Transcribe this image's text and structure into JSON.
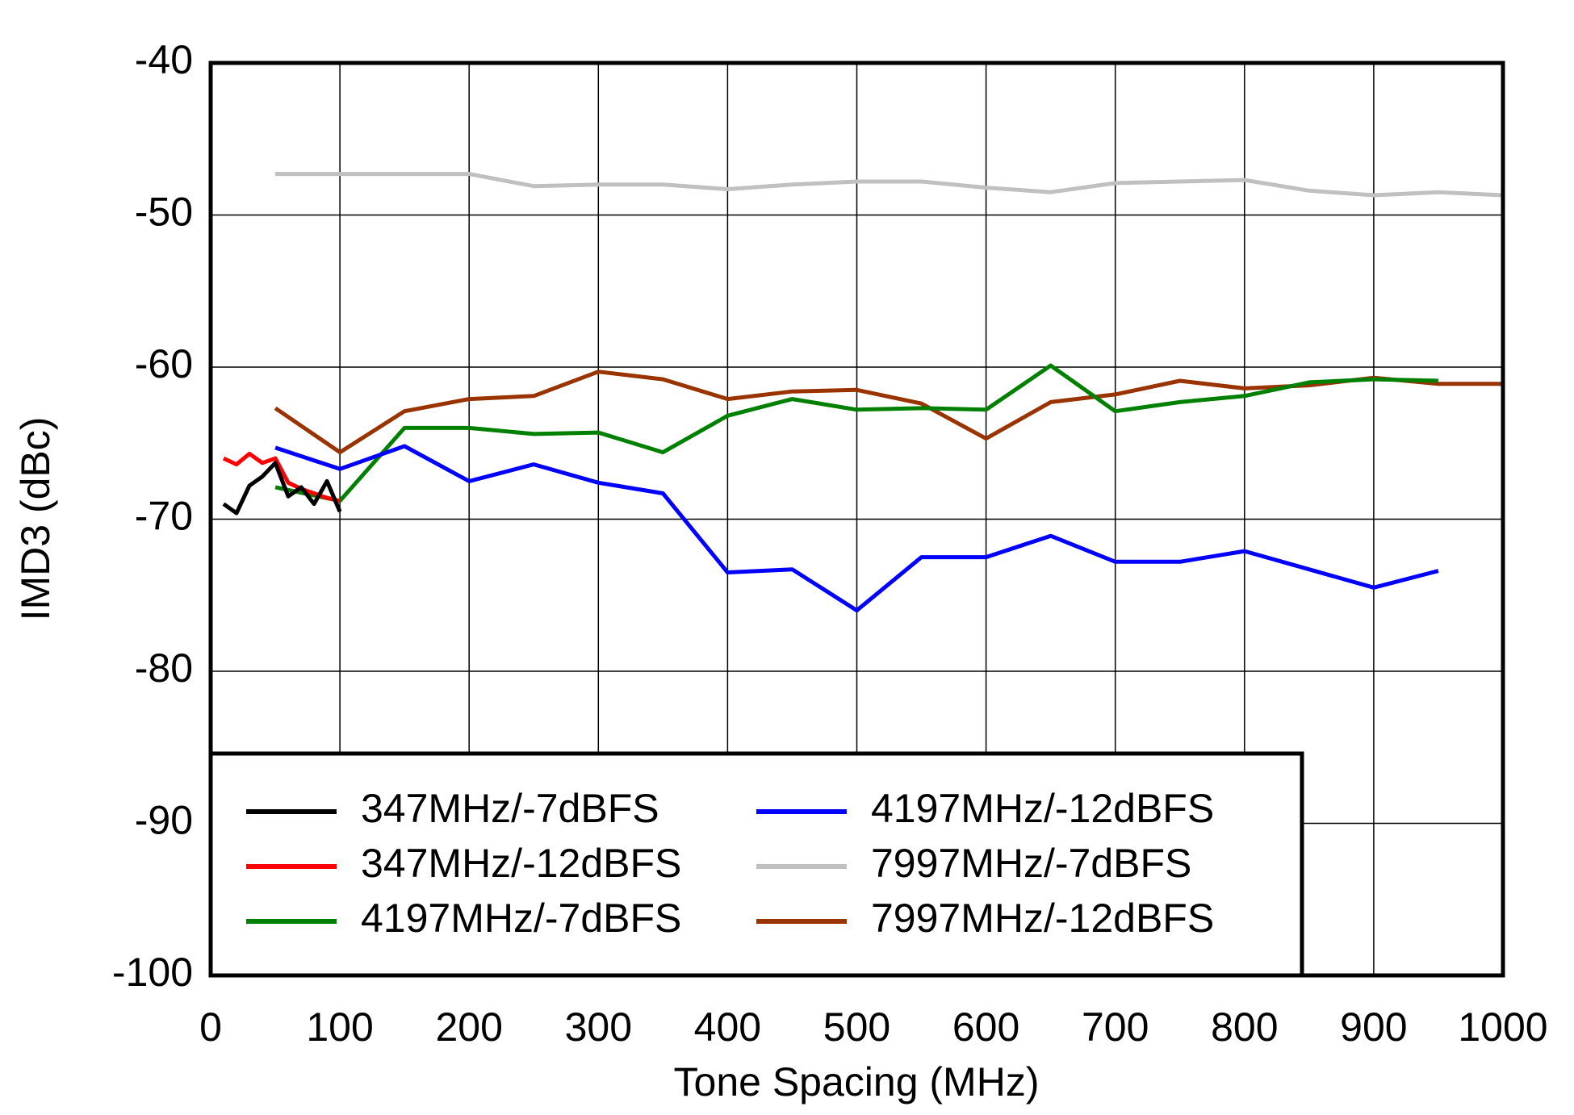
{
  "chart_data": {
    "type": "line",
    "xlabel": "Tone Spacing  (MHz)",
    "ylabel": "IMD3 (dBc)",
    "xlim": [
      0,
      1000
    ],
    "xticks": [
      0,
      100,
      200,
      300,
      400,
      500,
      600,
      700,
      800,
      900,
      1000
    ],
    "ylim": [
      -100,
      -40
    ],
    "yticks": [
      -100,
      -90,
      -80,
      -70,
      -60,
      -50,
      -40
    ],
    "grid": true,
    "legend": "lower left",
    "series": [
      {
        "name": "347MHz/-7dBFS",
        "color": "#000000",
        "x": [
          10,
          20,
          30,
          40,
          50,
          60,
          70,
          80,
          90,
          100
        ],
        "values": [
          -69,
          -69.6,
          -67.8,
          -67.2,
          -66.3,
          -68.5,
          -67.9,
          -69,
          -67.5,
          -69.5
        ]
      },
      {
        "name": "347MHz/-12dBFS",
        "color": "#ff0000",
        "x": [
          10,
          20,
          30,
          40,
          50,
          60,
          70,
          80,
          90,
          100
        ],
        "values": [
          -66,
          -66.4,
          -65.7,
          -66.3,
          -66,
          -67.6,
          -68,
          -68.3,
          -68.6,
          -68.8
        ]
      },
      {
        "name": "4197MHz/-7dBFS",
        "color": "#008000",
        "x": [
          50,
          100,
          150,
          200,
          250,
          300,
          350,
          400,
          450,
          500,
          550,
          600,
          650,
          700,
          750,
          800,
          850,
          900,
          950
        ],
        "values": [
          -67.9,
          -68.8,
          -64,
          -64,
          -64.4,
          -64.3,
          -65.6,
          -63.2,
          -62.1,
          -62.8,
          -62.7,
          -62.8,
          -59.9,
          -62.9,
          -62.3,
          -61.9,
          -61,
          -60.8,
          -60.9
        ]
      },
      {
        "name": "4197MHz/-12dBFS",
        "color": "#0000ff",
        "x": [
          50,
          100,
          150,
          200,
          250,
          300,
          350,
          400,
          450,
          500,
          550,
          600,
          650,
          700,
          750,
          800,
          850,
          900,
          950
        ],
        "values": [
          -65.3,
          -66.7,
          -65.2,
          -67.5,
          -66.4,
          -67.6,
          -68.3,
          -73.5,
          -73.3,
          -76,
          -72.5,
          -72.5,
          -71.1,
          -72.8,
          -72.8,
          -72.1,
          -73.3,
          -74.5,
          -73.4
        ]
      },
      {
        "name": "7997MHz/-7dBFS",
        "color": "#c0c0c0",
        "x": [
          50,
          100,
          150,
          200,
          250,
          300,
          350,
          400,
          450,
          500,
          550,
          600,
          650,
          700,
          750,
          800,
          850,
          900,
          950,
          1000
        ],
        "values": [
          -47.3,
          -47.3,
          -47.3,
          -47.3,
          -48.1,
          -48,
          -48,
          -48.3,
          -48,
          -47.8,
          -47.8,
          -48.2,
          -48.5,
          -47.9,
          -47.8,
          -47.7,
          -48.4,
          -48.7,
          -48.5,
          -48.7
        ]
      },
      {
        "name": "7997MHz/-12dBFS",
        "color": "#993300",
        "x": [
          50,
          100,
          150,
          200,
          250,
          300,
          350,
          400,
          450,
          500,
          550,
          600,
          650,
          700,
          750,
          800,
          850,
          900,
          950,
          1000
        ],
        "values": [
          -62.7,
          -65.6,
          -62.9,
          -62.1,
          -61.9,
          -60.3,
          -60.8,
          -62.1,
          -61.6,
          -61.5,
          -62.4,
          -64.7,
          -62.3,
          -61.8,
          -60.9,
          -61.4,
          -61.2,
          -60.7,
          -61.1,
          -61.1
        ]
      }
    ]
  }
}
